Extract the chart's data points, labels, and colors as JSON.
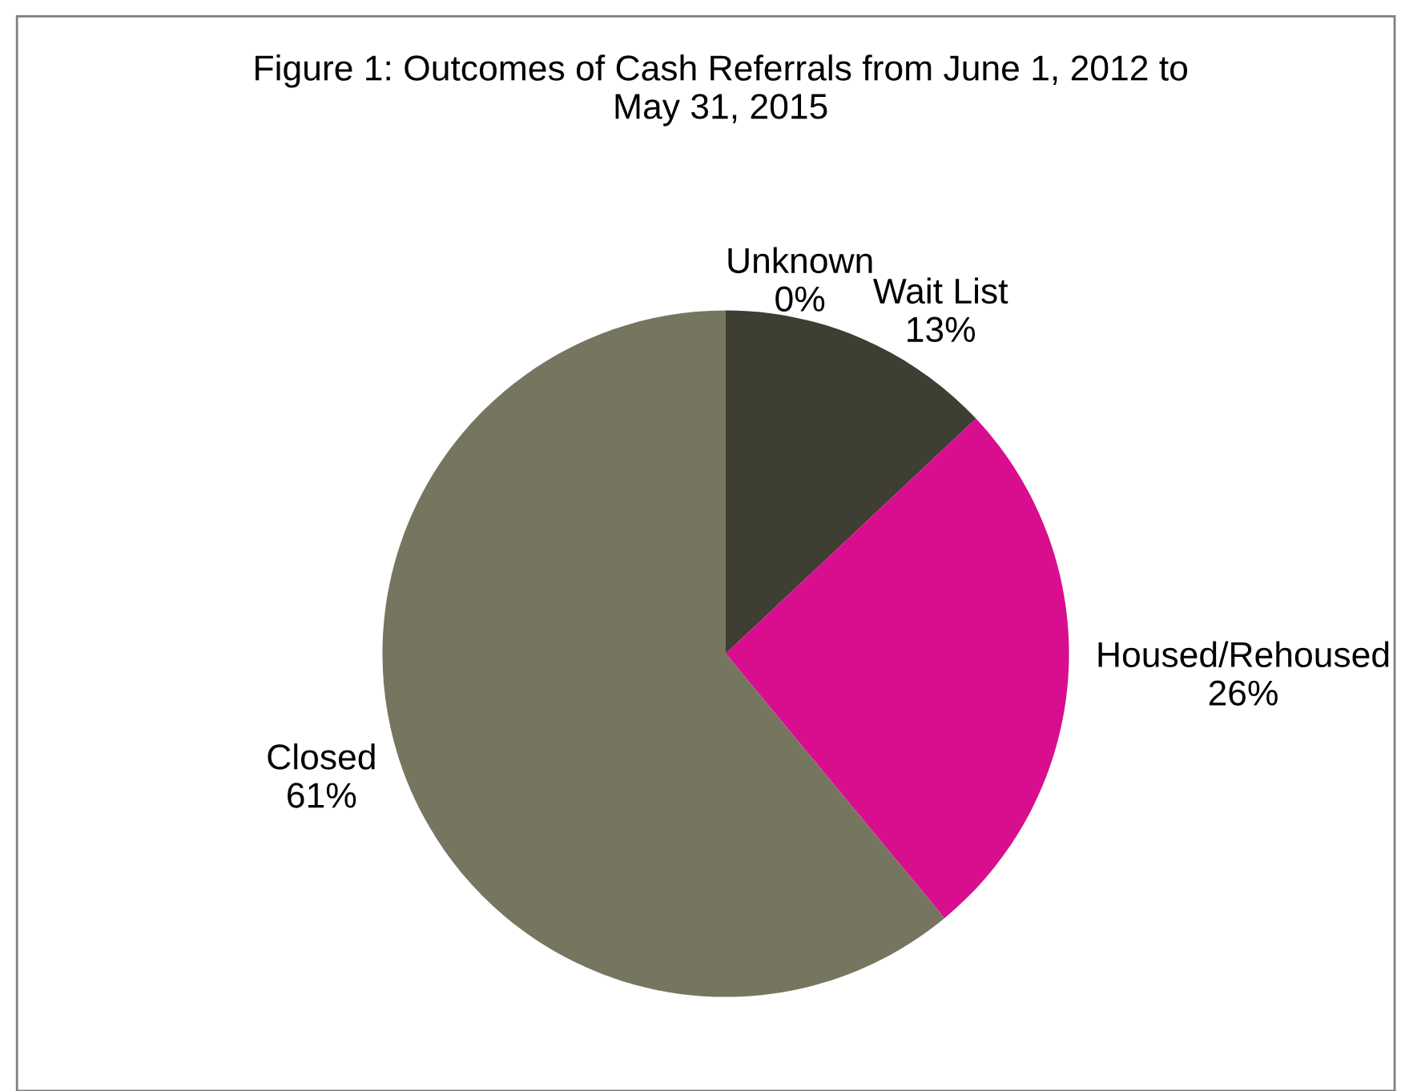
{
  "chart_data": {
    "type": "pie",
    "title": "Figure 1: Outcomes of Cash Referrals from June 1, 2012 to May 31, 2015",
    "categories": [
      "Wait List",
      "Housed/Rehoused",
      "Closed",
      "Unknown"
    ],
    "values": [
      13,
      26,
      61,
      0
    ],
    "colors": [
      "#3f3e33",
      "#d90e8e",
      "#767660",
      "#f5b21f"
    ],
    "value_labels": [
      "13%",
      "26%",
      "61%",
      "0%"
    ],
    "legend": false
  }
}
